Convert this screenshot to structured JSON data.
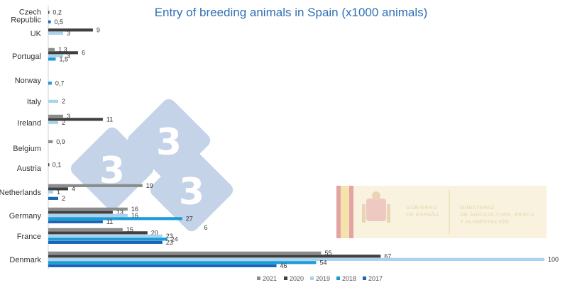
{
  "chart_data": {
    "type": "bar",
    "orientation": "horizontal",
    "title": "Entry of breeding animals in Spain (x1000 animals)",
    "categories": [
      "Czech Republic",
      "UK",
      "Portugal",
      "Norway",
      "Italy",
      "Ireland",
      "Belgium",
      "Austria",
      "Netherlands",
      "Germany",
      "France",
      "Denmark"
    ],
    "category_label_lines": [
      [
        "Czech",
        "Republic"
      ],
      [
        "UK"
      ],
      [
        "Portugal"
      ],
      [
        "Norway"
      ],
      [
        "Italy"
      ],
      [
        "Ireland"
      ],
      [
        "Belgium"
      ],
      [
        "Austria"
      ],
      [
        "Netherlands"
      ],
      [
        "Germany"
      ],
      [
        "France"
      ],
      [
        "Denmark"
      ]
    ],
    "series": [
      {
        "name": "2021",
        "color": "#8c8c8c",
        "values": [
          null,
          null,
          1.3,
          null,
          null,
          3,
          0.9,
          null,
          19,
          16,
          15,
          55
        ],
        "labels": [
          "",
          "",
          "1,3",
          "",
          "",
          "3",
          "0,9",
          "",
          "19",
          "16",
          "15",
          "55"
        ]
      },
      {
        "name": "2020",
        "color": "#404040",
        "values": [
          0.2,
          9,
          6,
          null,
          null,
          11,
          null,
          0.1,
          4,
          13,
          20,
          67
        ],
        "labels": [
          "0,2",
          "9",
          "6",
          "",
          "",
          "11",
          "",
          "0,1",
          "4",
          "13",
          "20",
          "67"
        ]
      },
      {
        "name": "2019",
        "color": "#a9d2ec",
        "values": [
          null,
          3,
          3,
          null,
          2,
          2,
          null,
          null,
          1,
          16,
          23,
          100
        ],
        "labels": [
          "",
          "3",
          "3",
          "",
          "2",
          "2",
          "",
          "",
          "1",
          "16",
          "23",
          "100"
        ]
      },
      {
        "name": "2018",
        "color": "#1a9ad6",
        "values": [
          null,
          null,
          1.5,
          0.7,
          null,
          null,
          null,
          null,
          null,
          27,
          24,
          54
        ],
        "labels": [
          "",
          "",
          "1,5",
          "0,7",
          "",
          "",
          "",
          "",
          "",
          "27",
          "24",
          "54"
        ]
      },
      {
        "name": "2017",
        "color": "#1565b8",
        "values": [
          0.5,
          null,
          null,
          null,
          null,
          null,
          null,
          null,
          2,
          11,
          23,
          46
        ],
        "labels": [
          "0,5",
          "",
          "",
          "",
          "",
          "",
          "",
          "",
          "2",
          "11",
          "23",
          "46"
        ]
      }
    ],
    "xlim": [
      0,
      100
    ],
    "stray_label": "6",
    "legend_position": "bottom",
    "grid": false
  },
  "watermark": {
    "digits": [
      "3",
      "3",
      "3"
    ]
  },
  "logo": {
    "line1": [
      "GOBIERNO",
      "DE ESPAÑA"
    ],
    "line2": [
      "MINISTERIO",
      "DE AGRICULTURA, PESCA",
      "Y ALIMENTACIÓN"
    ]
  },
  "colors": {
    "title": "#2f6fb3",
    "watermark": "#2e66b0",
    "logo": "#caa24a"
  }
}
